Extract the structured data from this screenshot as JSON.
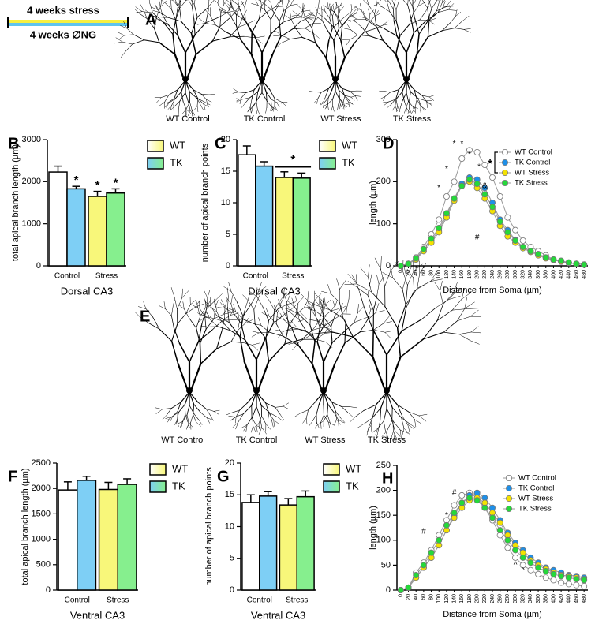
{
  "header": {
    "top_label": "4 weeks stress",
    "bottom_label": "4 weeks ∅NG"
  },
  "images": [
    {
      "panel_label": "A",
      "captions": [
        "WT Control",
        "TK Control",
        "WT Stress",
        "TK Stress"
      ]
    },
    {
      "panel_label": "E",
      "captions": [
        "WT Control",
        "TK Control",
        "WT Stress",
        "TK Stress"
      ]
    }
  ],
  "chart_data": [
    {
      "type": "bar",
      "panel_label": "B",
      "ylabel": "total apical branch length (µm)",
      "xlabel": "Dorsal CA3",
      "categories": [
        "Control",
        "Stress"
      ],
      "ylim": [
        0,
        3000
      ],
      "yticks": [
        0,
        1000,
        2000,
        3000
      ],
      "series": [
        {
          "name": "WT",
          "colors": [
            "#ffffff",
            "#f8f77a"
          ],
          "values": [
            2230,
            1650
          ],
          "errors": [
            140,
            120
          ],
          "annotations": [
            null,
            "*"
          ]
        },
        {
          "name": "TK",
          "colors": [
            "#7ecff5",
            "#86ef8e"
          ],
          "values": [
            1830,
            1730
          ],
          "errors": [
            60,
            100
          ],
          "annotations": [
            "*",
            "*"
          ]
        }
      ]
    },
    {
      "type": "bar",
      "panel_label": "C",
      "ylabel": "number of apical branch points",
      "xlabel": "Dorsal CA3",
      "categories": [
        "Control",
        "Stress"
      ],
      "ylim": [
        0,
        20
      ],
      "yticks": [
        0,
        5,
        10,
        15,
        20
      ],
      "group_annotations": [
        null,
        "*"
      ],
      "series": [
        {
          "name": "WT",
          "colors": [
            "#ffffff",
            "#f8f77a"
          ],
          "values": [
            17.6,
            14
          ],
          "errors": [
            1.4,
            0.9
          ]
        },
        {
          "name": "TK",
          "colors": [
            "#7ecff5",
            "#86ef8e"
          ],
          "values": [
            15.8,
            13.9
          ],
          "errors": [
            0.7,
            0.8
          ]
        }
      ]
    },
    {
      "type": "line",
      "panel_label": "D",
      "ylabel": "length (µm)",
      "xlabel": "Distance from Soma (µm)",
      "x": [
        0,
        20,
        40,
        60,
        80,
        100,
        120,
        140,
        160,
        180,
        200,
        220,
        240,
        260,
        280,
        300,
        320,
        340,
        360,
        380,
        400,
        420,
        440,
        460,
        480
      ],
      "xlim": [
        -10,
        490
      ],
      "xticks": [
        0,
        20,
        40,
        60,
        80,
        100,
        120,
        140,
        160,
        180,
        200,
        220,
        240,
        260,
        280,
        300,
        320,
        340,
        360,
        380,
        400,
        420,
        440,
        460,
        480
      ],
      "ylim": [
        0,
        300
      ],
      "yticks": [
        0,
        100,
        200,
        300
      ],
      "legend_annotation": "*",
      "series": [
        {
          "name": "WT Control",
          "color": "#ffffff",
          "values": [
            0,
            5,
            20,
            45,
            75,
            110,
            165,
            200,
            255,
            275,
            270,
            240,
            210,
            165,
            115,
            85,
            60,
            45,
            35,
            25,
            15,
            12,
            8,
            5,
            3
          ]
        },
        {
          "name": "TK Control",
          "color": "#1e8fe8",
          "values": [
            0,
            5,
            15,
            40,
            60,
            85,
            120,
            160,
            195,
            210,
            205,
            185,
            150,
            110,
            85,
            62,
            45,
            35,
            28,
            20,
            14,
            10,
            7,
            5,
            3
          ]
        },
        {
          "name": "WT Stress",
          "color": "#f4e200",
          "values": [
            0,
            5,
            15,
            35,
            55,
            80,
            115,
            155,
            190,
            200,
            185,
            160,
            130,
            95,
            70,
            55,
            42,
            33,
            25,
            18,
            14,
            10,
            7,
            5,
            3
          ]
        },
        {
          "name": "TK Stress",
          "color": "#25d83a",
          "values": [
            0,
            5,
            18,
            40,
            65,
            90,
            125,
            160,
            190,
            205,
            195,
            170,
            140,
            105,
            80,
            60,
            45,
            35,
            28,
            20,
            15,
            12,
            8,
            5,
            3
          ]
        }
      ],
      "annotations": [
        {
          "text": "*",
          "x": 100,
          "y": 185
        },
        {
          "text": "*",
          "x": 120,
          "y": 230
        },
        {
          "text": "*",
          "x": 140,
          "y": 290
        },
        {
          "text": "*",
          "x": 160,
          "y": 290
        },
        {
          "text": "*",
          "x": 180,
          "y": 265
        },
        {
          "text": "*",
          "x": 205,
          "y": 235
        },
        {
          "text": "&",
          "x": 220,
          "y": 190
        },
        {
          "text": "#",
          "x": 200,
          "y": 68
        }
      ]
    },
    {
      "type": "bar",
      "panel_label": "F",
      "ylabel": "total apical branch length (µm)",
      "xlabel": "Ventral CA3",
      "categories": [
        "Control",
        "Stress"
      ],
      "ylim": [
        0,
        2500
      ],
      "yticks": [
        0,
        500,
        1000,
        1500,
        2000,
        2500
      ],
      "series": [
        {
          "name": "WT",
          "colors": [
            "#ffffff",
            "#f8f77a"
          ],
          "values": [
            1970,
            1980
          ],
          "errors": [
            160,
            140
          ]
        },
        {
          "name": "TK",
          "colors": [
            "#7ecff5",
            "#86ef8e"
          ],
          "values": [
            2160,
            2080
          ],
          "errors": [
            80,
            110
          ]
        }
      ]
    },
    {
      "type": "bar",
      "panel_label": "G",
      "ylabel": "number of apical branch points",
      "xlabel": "Ventral CA3",
      "categories": [
        "Control",
        "Stress"
      ],
      "ylim": [
        0,
        20
      ],
      "yticks": [
        0,
        5,
        10,
        15,
        20
      ],
      "series": [
        {
          "name": "WT",
          "colors": [
            "#ffffff",
            "#f8f77a"
          ],
          "values": [
            13.8,
            13.4
          ],
          "errors": [
            1.2,
            1.0
          ]
        },
        {
          "name": "TK",
          "colors": [
            "#7ecff5",
            "#86ef8e"
          ],
          "values": [
            14.8,
            14.7
          ],
          "errors": [
            0.7,
            0.9
          ]
        }
      ]
    },
    {
      "type": "line",
      "panel_label": "H",
      "ylabel": "length (µm)",
      "xlabel": "Distance from Soma (µm)",
      "x": [
        0,
        20,
        40,
        60,
        80,
        100,
        120,
        140,
        160,
        180,
        200,
        220,
        240,
        260,
        280,
        300,
        320,
        340,
        360,
        380,
        400,
        420,
        440,
        460,
        480
      ],
      "xlim": [
        -10,
        490
      ],
      "xticks": [
        0,
        20,
        40,
        60,
        80,
        100,
        120,
        140,
        160,
        180,
        200,
        220,
        240,
        260,
        280,
        300,
        320,
        340,
        360,
        380,
        400,
        420,
        440,
        460,
        480
      ],
      "ylim": [
        0,
        250
      ],
      "yticks": [
        0,
        50,
        100,
        150,
        200,
        250
      ],
      "series": [
        {
          "name": "WT Control",
          "color": "#ffffff",
          "values": [
            0,
            5,
            35,
            55,
            80,
            110,
            140,
            170,
            190,
            195,
            185,
            165,
            140,
            110,
            85,
            65,
            50,
            40,
            32,
            25,
            20,
            15,
            12,
            10,
            8
          ]
        },
        {
          "name": "TK Control",
          "color": "#1e8fe8",
          "values": [
            0,
            5,
            25,
            45,
            65,
            90,
            120,
            150,
            175,
            190,
            195,
            185,
            165,
            140,
            115,
            95,
            80,
            65,
            55,
            45,
            40,
            35,
            30,
            28,
            25
          ]
        },
        {
          "name": "WT Stress",
          "color": "#f4e200",
          "values": [
            0,
            5,
            25,
            45,
            65,
            90,
            120,
            145,
            165,
            180,
            185,
            175,
            155,
            135,
            110,
            90,
            75,
            60,
            50,
            42,
            35,
            30,
            28,
            25,
            22
          ]
        },
        {
          "name": "TK Stress",
          "color": "#25d83a",
          "values": [
            0,
            5,
            30,
            50,
            75,
            100,
            130,
            155,
            175,
            185,
            180,
            165,
            145,
            120,
            100,
            80,
            65,
            55,
            45,
            38,
            32,
            28,
            25,
            22,
            20
          ]
        }
      ],
      "annotations": [
        {
          "text": "#",
          "x": 60,
          "y": 117
        },
        {
          "text": "*",
          "x": 120,
          "y": 150
        },
        {
          "text": "#",
          "x": 140,
          "y": 195
        },
        {
          "text": "^",
          "x": 300,
          "y": 50
        },
        {
          "text": "^",
          "x": 320,
          "y": 38
        }
      ]
    }
  ]
}
